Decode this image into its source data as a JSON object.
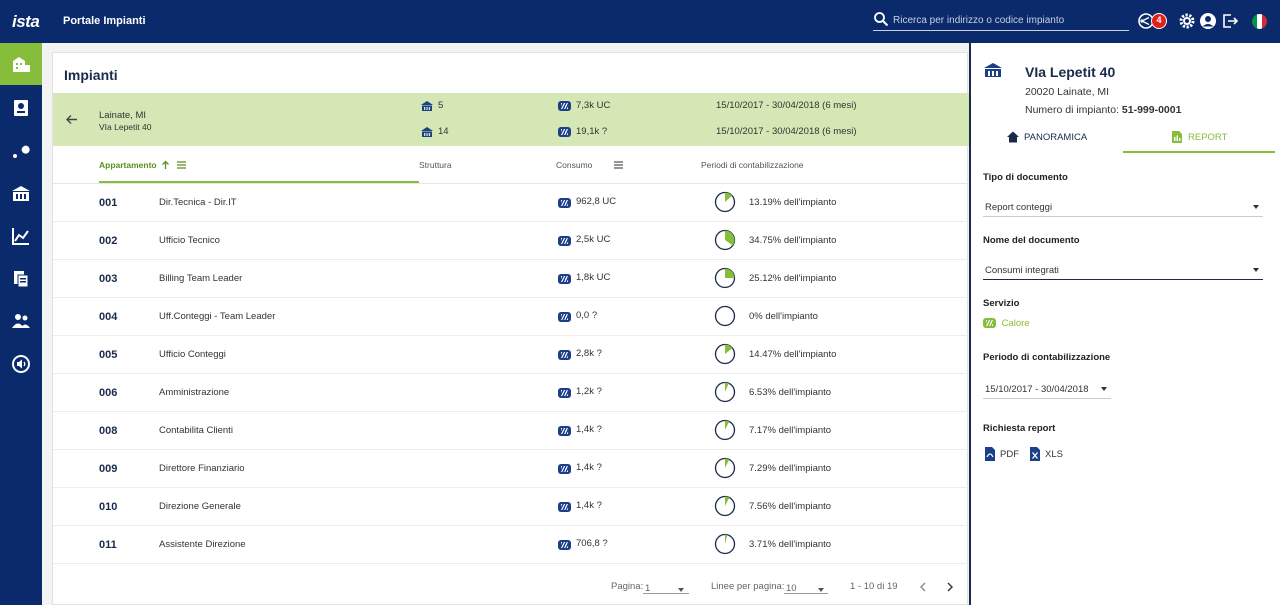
{
  "header": {
    "logo": "ista",
    "app_title": "Portale Impianti",
    "search_placeholder": "Ricerca per indirizzo o codice impianto",
    "notifications_count": "4"
  },
  "sidebar": {
    "items": [
      {
        "name": "buildings",
        "active": true
      },
      {
        "name": "devices"
      },
      {
        "name": "service"
      },
      {
        "name": "properties"
      },
      {
        "name": "analytics"
      },
      {
        "name": "documents"
      },
      {
        "name": "users"
      },
      {
        "name": "settings"
      }
    ]
  },
  "main": {
    "title": "Impianti",
    "location": {
      "city": "Lainate, MI",
      "street": "VIa Lepetit 40"
    },
    "summary": [
      {
        "count": "5",
        "consumption": "7,3k UC",
        "period": "15/10/2017 - 30/04/2018 (6 mesi)"
      },
      {
        "count": "14",
        "consumption": "19,1k ?",
        "period": "15/10/2017 - 30/04/2018 (6 mesi)"
      }
    ],
    "columns": {
      "apartment": "Appartamento",
      "structure": "Struttura",
      "consumption": "Consumo",
      "periods": "Periodi di contabilizzazione"
    },
    "rows": [
      {
        "num": "001",
        "name": "Dir.Tecnica - Dir.IT",
        "consumption": "962,8 UC",
        "pct_label": "13.19% dell'impianto",
        "pct": 13.19
      },
      {
        "num": "002",
        "name": "Ufficio Tecnico",
        "consumption": "2,5k UC",
        "pct_label": "34.75% dell'impianto",
        "pct": 34.75
      },
      {
        "num": "003",
        "name": "Billing Team Leader",
        "consumption": "1,8k UC",
        "pct_label": "25.12% dell'impianto",
        "pct": 25.12
      },
      {
        "num": "004",
        "name": "Uff.Conteggi - Team Leader",
        "consumption": "0,0 ?",
        "pct_label": "0% dell'impianto",
        "pct": 0
      },
      {
        "num": "005",
        "name": "Ufficio Conteggi",
        "consumption": "2,8k ?",
        "pct_label": "14.47% dell'impianto",
        "pct": 14.47
      },
      {
        "num": "006",
        "name": "Amministrazione",
        "consumption": "1,2k ?",
        "pct_label": "6.53% dell'impianto",
        "pct": 6.53
      },
      {
        "num": "008",
        "name": "Contabilita Clienti",
        "consumption": "1,4k ?",
        "pct_label": "7.17% dell'impianto",
        "pct": 7.17
      },
      {
        "num": "009",
        "name": "Direttore Finanziario",
        "consumption": "1,4k ?",
        "pct_label": "7.29% dell'impianto",
        "pct": 7.29
      },
      {
        "num": "010",
        "name": "Direzione Generale",
        "consumption": "1,4k ?",
        "pct_label": "7.56% dell'impianto",
        "pct": 7.56
      },
      {
        "num": "011",
        "name": "Assistente Direzione",
        "consumption": "706,8 ?",
        "pct_label": "3.71% dell'impianto",
        "pct": 3.71
      }
    ],
    "pagination": {
      "page_label": "Pagina:",
      "page_value": "1",
      "rows_label": "Linee per pagina:",
      "rows_value": "10",
      "range": "1 - 10 di 19"
    }
  },
  "details": {
    "title": "VIa Lepetit 40",
    "address": "20020 Lainate, MI",
    "number_label": "Numero di impianto:",
    "number_value": "51-999-0001",
    "tabs": {
      "overview": "PANORAMICA",
      "report": "REPORT"
    },
    "doc_type_label": "Tipo di documento",
    "doc_type_value": "Report conteggi",
    "doc_name_label": "Nome del documento",
    "doc_name_value": "Consumi integrati",
    "service_label": "Servizio",
    "service_value": "Calore",
    "period_label": "Periodo di contabilizzazione",
    "period_value": "15/10/2017 - 30/04/2018",
    "request_label": "Richiesta report",
    "pdf_label": "PDF",
    "xls_label": "XLS"
  },
  "colors": {
    "navy": "#0a2a6b",
    "green": "#86bd3a",
    "band": "#d4e7b5"
  }
}
